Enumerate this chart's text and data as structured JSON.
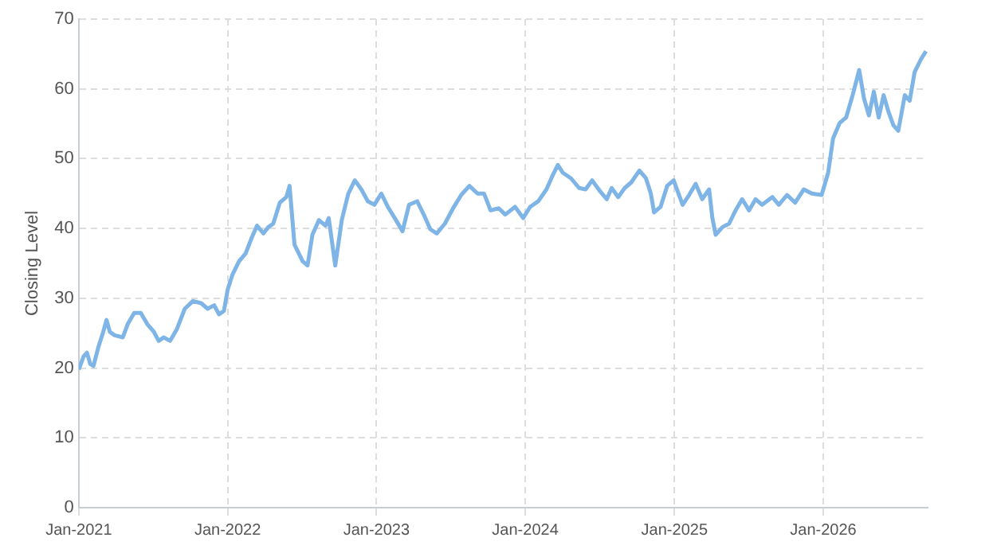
{
  "chart_data": {
    "type": "line",
    "ylabel": "Closing Level",
    "x": [
      "2021-01-01",
      "2021-01-13",
      "2021-01-21",
      "2021-01-29",
      "2021-02-06",
      "2021-02-18",
      "2021-03-02",
      "2021-03-10",
      "2021-03-18",
      "2021-03-30",
      "2021-04-19",
      "2021-05-01",
      "2021-05-17",
      "2021-06-02",
      "2021-06-18",
      "2021-07-04",
      "2021-07-16",
      "2021-07-28",
      "2021-08-13",
      "2021-08-29",
      "2021-09-18",
      "2021-10-08",
      "2021-10-28",
      "2021-11-13",
      "2021-11-29",
      "2021-12-11",
      "2021-12-23",
      "2022-01-01",
      "2022-01-13",
      "2022-01-29",
      "2022-02-14",
      "2022-03-02",
      "2022-03-14",
      "2022-03-30",
      "2022-04-11",
      "2022-04-23",
      "2022-05-09",
      "2022-05-25",
      "2022-06-02",
      "2022-06-14",
      "2022-07-04",
      "2022-07-16",
      "2022-07-28",
      "2022-08-13",
      "2022-08-29",
      "2022-09-06",
      "2022-09-22",
      "2022-10-08",
      "2022-10-24",
      "2022-11-09",
      "2022-11-25",
      "2022-12-11",
      "2022-12-27",
      "2023-01-13",
      "2023-01-29",
      "2023-02-18",
      "2023-03-06",
      "2023-03-22",
      "2023-04-11",
      "2023-04-27",
      "2023-05-13",
      "2023-05-29",
      "2023-06-18",
      "2023-07-08",
      "2023-07-28",
      "2023-08-17",
      "2023-09-06",
      "2023-09-22",
      "2023-10-08",
      "2023-10-28",
      "2023-11-13",
      "2023-12-07",
      "2023-12-27",
      "2024-01-13",
      "2024-02-02",
      "2024-02-22",
      "2024-03-09",
      "2024-03-21",
      "2024-04-02",
      "2024-04-22",
      "2024-05-12",
      "2024-05-28",
      "2024-06-13",
      "2024-07-03",
      "2024-07-19",
      "2024-07-31",
      "2024-08-16",
      "2024-09-01",
      "2024-09-17",
      "2024-10-07",
      "2024-10-23",
      "2024-11-04",
      "2024-11-12",
      "2024-11-28",
      "2024-12-14",
      "2024-12-30",
      "2025-01-09",
      "2025-01-21",
      "2025-02-06",
      "2025-02-22",
      "2025-03-10",
      "2025-03-27",
      "2025-04-04",
      "2025-04-12",
      "2025-04-29",
      "2025-05-15",
      "2025-05-31",
      "2025-06-16",
      "2025-07-03",
      "2025-07-19",
      "2025-08-04",
      "2025-08-29",
      "2025-09-14",
      "2025-10-04",
      "2025-10-24",
      "2025-11-14",
      "2025-12-04",
      "2025-12-28",
      "2026-01-13",
      "2026-01-25",
      "2026-02-10",
      "2026-02-26",
      "2026-03-14",
      "2026-03-30",
      "2026-04-11",
      "2026-04-23",
      "2026-05-05",
      "2026-05-17",
      "2026-05-29",
      "2026-06-10",
      "2026-06-22",
      "2026-07-04",
      "2026-07-20",
      "2026-08-01",
      "2026-08-13",
      "2026-08-29",
      "2026-09-10"
    ],
    "series": [
      {
        "color": "#7eb5e6",
        "values": [
          19.8,
          21.7,
          22.2,
          20.6,
          20.3,
          23,
          25.2,
          26.9,
          25.2,
          24.7,
          24.4,
          26.3,
          27.9,
          27.9,
          26.3,
          25.2,
          23.9,
          24.4,
          23.9,
          25.5,
          28.5,
          29.6,
          29.3,
          28.5,
          29,
          27.7,
          28.2,
          31.2,
          33.4,
          35.3,
          36.4,
          38.8,
          40.4,
          39.3,
          40.2,
          40.7,
          43.7,
          44.5,
          46.1,
          37.7,
          35.3,
          34.7,
          39.1,
          41.2,
          40.4,
          41.5,
          34.7,
          41.2,
          45,
          46.9,
          45.6,
          43.9,
          43.4,
          45,
          43.1,
          41.2,
          39.6,
          43.4,
          43.9,
          42,
          39.9,
          39.3,
          40.7,
          42.9,
          44.8,
          46.1,
          45,
          45,
          42.6,
          42.9,
          42,
          43.1,
          41.5,
          43.1,
          43.9,
          45.6,
          47.7,
          49.1,
          48,
          47.2,
          45.8,
          45.6,
          46.9,
          45.3,
          44.2,
          45.8,
          44.5,
          45.8,
          46.6,
          48.3,
          47.2,
          45,
          42.3,
          43.1,
          46.1,
          46.9,
          45.3,
          43.4,
          44.8,
          46.4,
          44.2,
          45.6,
          41.5,
          39.1,
          40.2,
          40.7,
          42.6,
          44.2,
          42.6,
          44.2,
          43.4,
          44.5,
          43.4,
          44.8,
          43.7,
          45.6,
          45,
          44.8,
          48,
          52.9,
          55.1,
          55.9,
          59.1,
          62.7,
          58.6,
          56.2,
          59.6,
          55.9,
          59.1,
          56.7,
          54.8,
          54,
          59.1,
          58.3,
          62.4,
          64.3,
          65.4
        ]
      }
    ],
    "xlim": [
      "2021-01-01",
      "2026-09-14"
    ],
    "xticks": [
      {
        "value": "2021-01-01",
        "label": "Jan-2021"
      },
      {
        "value": "2022-01-01",
        "label": "Jan-2022"
      },
      {
        "value": "2023-01-01",
        "label": "Jan-2023"
      },
      {
        "value": "2024-01-01",
        "label": "Jan-2024"
      },
      {
        "value": "2025-01-01",
        "label": "Jan-2025"
      },
      {
        "value": "2026-01-01",
        "label": "Jan-2026"
      }
    ],
    "ylim": [
      0,
      70
    ],
    "yticks": [
      0,
      10,
      20,
      30,
      40,
      50,
      60,
      70
    ],
    "grid": true,
    "line_style": "solid",
    "marker": "none"
  }
}
